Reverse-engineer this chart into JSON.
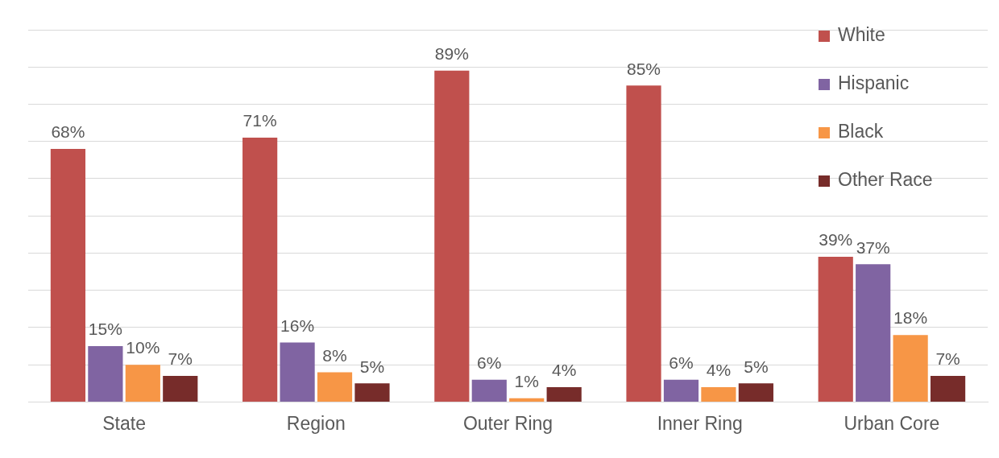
{
  "chart_data": {
    "type": "bar",
    "categories": [
      "State",
      "Region",
      "Outer Ring",
      "Inner Ring",
      "Urban Core"
    ],
    "series": [
      {
        "name": "White",
        "color": "#c0504d",
        "values": [
          68,
          71,
          89,
          85,
          39
        ],
        "value_labels": [
          "68%",
          "71%",
          "89%",
          "85%",
          "39%"
        ]
      },
      {
        "name": "Hispanic",
        "color": "#8064a2",
        "values": [
          15,
          16,
          6,
          6,
          37
        ],
        "value_labels": [
          "15%",
          "16%",
          "6%",
          "6%",
          "37%"
        ]
      },
      {
        "name": "Black",
        "color": "#f79646",
        "values": [
          10,
          8,
          1,
          4,
          18
        ],
        "value_labels": [
          "10%",
          "8%",
          "1%",
          "4%",
          "18%"
        ]
      },
      {
        "name": "Other Race",
        "color": "#772c2a",
        "values": [
          7,
          5,
          4,
          5,
          7
        ],
        "value_labels": [
          "7%",
          "5%",
          "4%",
          "5%",
          "7%"
        ]
      }
    ],
    "ylim": [
      0,
      100
    ],
    "yticks": [
      {
        "value": 0,
        "label": null
      },
      {
        "value": 10,
        "label": null
      },
      {
        "value": 20,
        "label": null
      },
      {
        "value": 30,
        "label": null
      },
      {
        "value": 40,
        "label": null
      },
      {
        "value": 50,
        "label": null
      },
      {
        "value": 60,
        "label": null
      },
      {
        "value": 70,
        "label": null
      },
      {
        "value": 80,
        "label": null
      },
      {
        "value": 90,
        "label": null
      },
      {
        "value": 100,
        "label": null
      }
    ],
    "tick_labels": "x",
    "grid": "y",
    "legend": "top right"
  }
}
